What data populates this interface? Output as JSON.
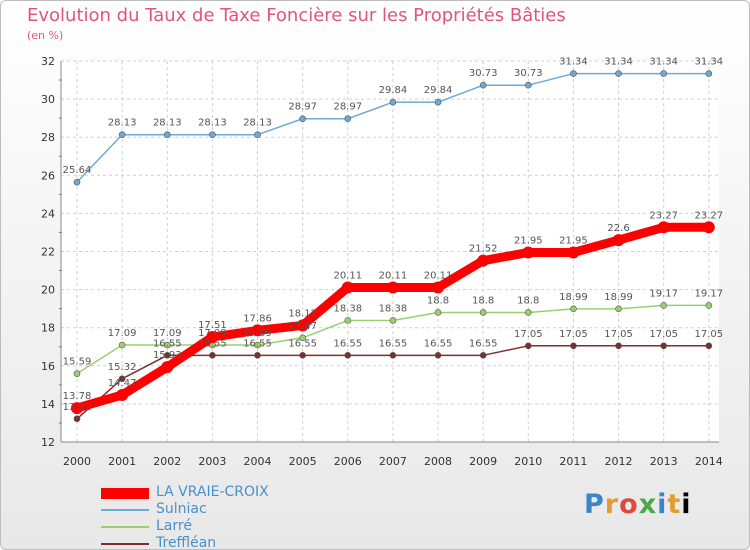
{
  "chart_data": {
    "type": "line",
    "title": "Evolution du Taux de Taxe Foncière sur les Propriétés Bâties",
    "subtitle": "(en %)",
    "xlabel": "",
    "ylabel": "",
    "x": [
      "2000",
      "2001",
      "2002",
      "2003",
      "2004",
      "2005",
      "2006",
      "2007",
      "2008",
      "2009",
      "2010",
      "2011",
      "2012",
      "2013",
      "2014"
    ],
    "ylim": [
      12,
      32
    ],
    "yticks": [
      12,
      14,
      16,
      18,
      20,
      22,
      24,
      26,
      28,
      30,
      32
    ],
    "grid": true,
    "series": [
      {
        "name": "LA VRAIE-CROIX",
        "color": "#ff0000",
        "values": [
          13.78,
          14.47,
          15.93,
          17.51,
          17.86,
          18.12,
          20.11,
          20.11,
          20.11,
          21.52,
          21.95,
          21.95,
          22.6,
          23.27,
          23.27
        ],
        "labels": [
          "13.78",
          "14.47",
          "15.93",
          "17.51",
          "17.86",
          "18.12",
          "20.11",
          "20.11",
          "20.11",
          "21.52",
          "21.95",
          "21.95",
          "22.6",
          "23.27",
          "23.27"
        ]
      },
      {
        "name": "Sulniac",
        "color": "#6fa8d6",
        "values": [
          25.64,
          28.13,
          28.13,
          28.13,
          28.13,
          28.97,
          28.97,
          29.84,
          29.84,
          30.73,
          30.73,
          31.34,
          31.34,
          31.34,
          31.34
        ],
        "labels": [
          "25.64",
          "28.13",
          "28.13",
          "28.13",
          "28.13",
          "28.97",
          "28.97",
          "29.84",
          "29.84",
          "30.73",
          "30.73",
          "31.34",
          "31.34",
          "31.34",
          "31.34"
        ]
      },
      {
        "name": "Larré",
        "color": "#99d06b",
        "values": [
          15.59,
          17.09,
          17.09,
          17.09,
          17.09,
          17.47,
          18.38,
          18.38,
          18.8,
          18.8,
          18.8,
          18.99,
          18.99,
          19.17,
          19.17
        ],
        "labels": [
          "15.59",
          "17.09",
          "17.09",
          "17.09",
          "17.09",
          "17.47",
          "18.38",
          "18.38",
          "18.8",
          "18.8",
          "18.8",
          "18.99",
          "18.99",
          "19.17",
          "19.17"
        ]
      },
      {
        "name": "Treffléan",
        "color": "#7a3030",
        "values": [
          13.22,
          15.32,
          16.55,
          16.55,
          16.55,
          16.55,
          16.55,
          16.55,
          16.55,
          16.55,
          17.05,
          17.05,
          17.05,
          17.05,
          17.05
        ],
        "labels": [
          "13.22",
          "15.32",
          "16.55",
          "16.55",
          "16.55",
          "16.55",
          "16.55",
          "16.55",
          "16.55",
          "16.55",
          "17.05",
          "17.05",
          "17.05",
          "17.05",
          "17.05"
        ]
      }
    ]
  },
  "logo": {
    "letters": [
      "P",
      "r",
      "o",
      "x",
      "i",
      "t",
      "i"
    ]
  }
}
